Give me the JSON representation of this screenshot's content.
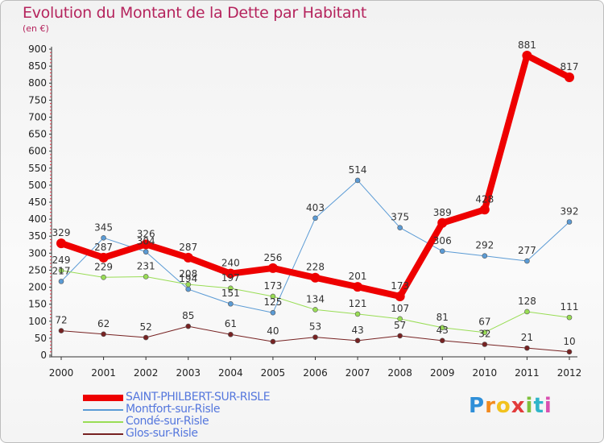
{
  "chart_data": {
    "type": "line",
    "title": "Evolution du Montant de la Dette par Habitant",
    "subtitle": "(en €)",
    "x": [
      "2000",
      "2001",
      "2002",
      "2003",
      "2004",
      "2005",
      "2006",
      "2007",
      "2008",
      "2009",
      "2010",
      "2011",
      "2012"
    ],
    "y_ticks": [
      "0",
      "50",
      "100",
      "150",
      "200",
      "250",
      "300",
      "350",
      "400",
      "450",
      "500",
      "550",
      "600",
      "650",
      "700",
      "750",
      "800",
      "850",
      "900"
    ],
    "ylim": [
      0,
      900
    ],
    "grid": false,
    "legend_position": "bottom-left",
    "series": [
      {
        "name": "SAINT-PHILBERT-SUR-RISLE",
        "color": "#ee0000",
        "width": 8,
        "values": [
          329,
          287,
          326,
          287,
          240,
          256,
          228,
          201,
          173,
          389,
          428,
          881,
          817
        ],
        "labels": [
          "329",
          "287",
          "326",
          "287",
          "240",
          "256",
          "228",
          "201",
          "173",
          "389",
          "428",
          "881",
          "817"
        ]
      },
      {
        "name": "Montfort-sur-Risle",
        "color": "#5b9bd5",
        "width": 1,
        "values": [
          217,
          345,
          304,
          194,
          151,
          125,
          403,
          514,
          375,
          306,
          292,
          277,
          392
        ],
        "labels": [
          "217",
          "345",
          "304",
          "194",
          "151",
          "125",
          "403",
          "514",
          "375",
          "306",
          "292",
          "277",
          "392"
        ]
      },
      {
        "name": "Condé-sur-Risle",
        "color": "#99dd55",
        "width": 1,
        "values": [
          249,
          229,
          231,
          208,
          197,
          173,
          134,
          121,
          107,
          81,
          67,
          128,
          111
        ],
        "labels": [
          "249",
          "229",
          "231",
          "208",
          "197",
          "173",
          "134",
          "121",
          "107",
          "81",
          "67",
          "128",
          "111"
        ]
      },
      {
        "name": "Glos-sur-Risle",
        "color": "#772222",
        "width": 1,
        "values": [
          72,
          62,
          52,
          85,
          61,
          40,
          53,
          43,
          57,
          43,
          32,
          21,
          10
        ],
        "labels": [
          "72",
          "62",
          "52",
          "85",
          "61",
          "40",
          "53",
          "43",
          "57",
          "43",
          "32",
          "21",
          "10"
        ]
      }
    ]
  },
  "logo": {
    "letters": [
      "P",
      "r",
      "o",
      "x",
      "i",
      "t",
      "i"
    ],
    "colors": [
      "#2f8fd8",
      "#f28a1e",
      "#f2c21e",
      "#e23b3b",
      "#7fc13c",
      "#2fb5c9",
      "#d94fb0"
    ]
  }
}
